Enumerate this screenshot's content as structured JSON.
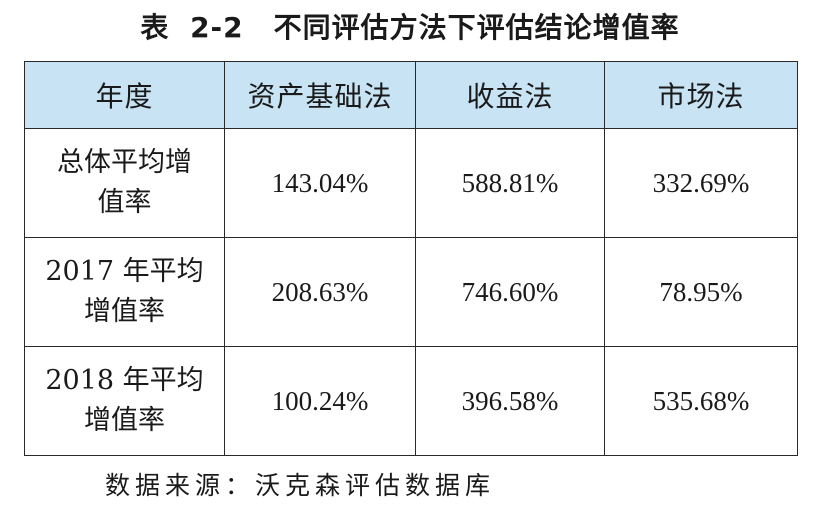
{
  "title": {
    "prefix": "表",
    "number": "2-2",
    "text": "不同评估方法下评估结论增值率"
  },
  "table": {
    "headers": [
      "年度",
      "资产基础法",
      "收益法",
      "市场法"
    ],
    "rows": [
      {
        "label_line1": "总体平均增",
        "label_line2": "值率",
        "values": [
          "143.04%",
          "588.81%",
          "332.69%"
        ]
      },
      {
        "label_line1": "2017 年平均",
        "label_line2": "增值率",
        "values": [
          "208.63%",
          "746.60%",
          "78.95%"
        ]
      },
      {
        "label_line1": "2018 年平均",
        "label_line2": "增值率",
        "values": [
          "100.24%",
          "396.58%",
          "535.68%"
        ]
      }
    ]
  },
  "source": "数据来源：沃克森评估数据库",
  "colors": {
    "header_bg": "#c8e4f4",
    "border": "#2a2a2a",
    "text": "#1a1a1a"
  }
}
